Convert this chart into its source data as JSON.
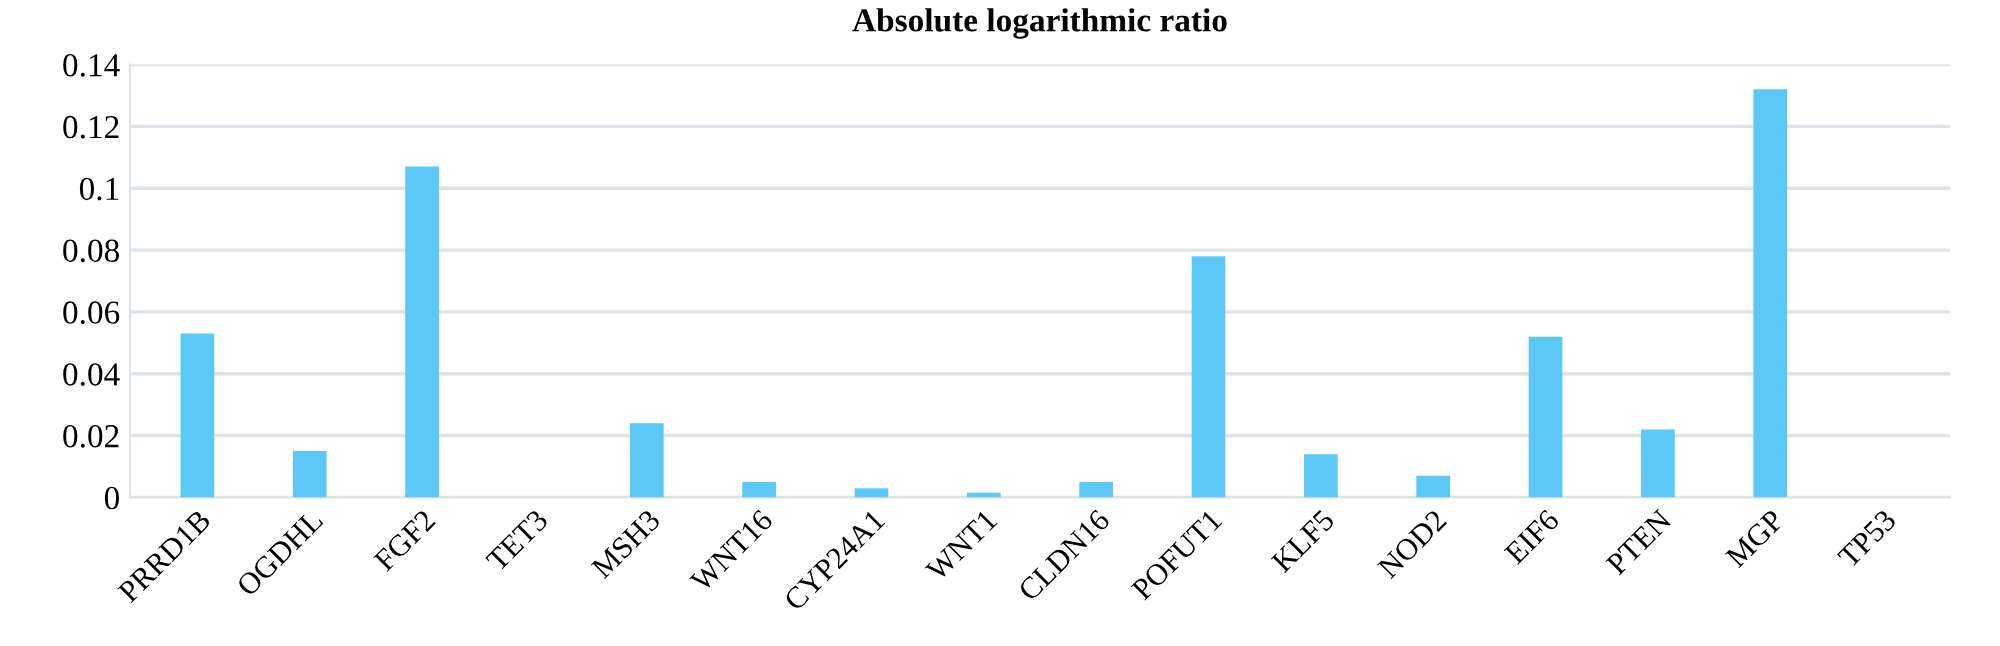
{
  "chart_data": {
    "type": "bar",
    "title": "Absolute logarithmic ratio",
    "categories": [
      "PRRD1B",
      "OGDHL",
      "FGF2",
      "TET3",
      "MSH3",
      "WNT16",
      "CYP24A1",
      "WNT1",
      "CLDN16",
      "POFUT1",
      "KLF5",
      "NOD2",
      "EIF6",
      "PTEN",
      "MGP",
      "TP53"
    ],
    "values": [
      0.053,
      0.015,
      0.107,
      0,
      0.024,
      0.005,
      0.003,
      0.0015,
      0.005,
      0.078,
      0.014,
      0.007,
      0.052,
      0.022,
      0.132,
      0
    ],
    "color": "#5bc8f7",
    "ylim": [
      0,
      0.14
    ],
    "yticks": [
      0,
      0.02,
      0.04,
      0.06,
      0.08,
      0.1,
      0.12,
      0.14
    ],
    "grid": "y"
  }
}
